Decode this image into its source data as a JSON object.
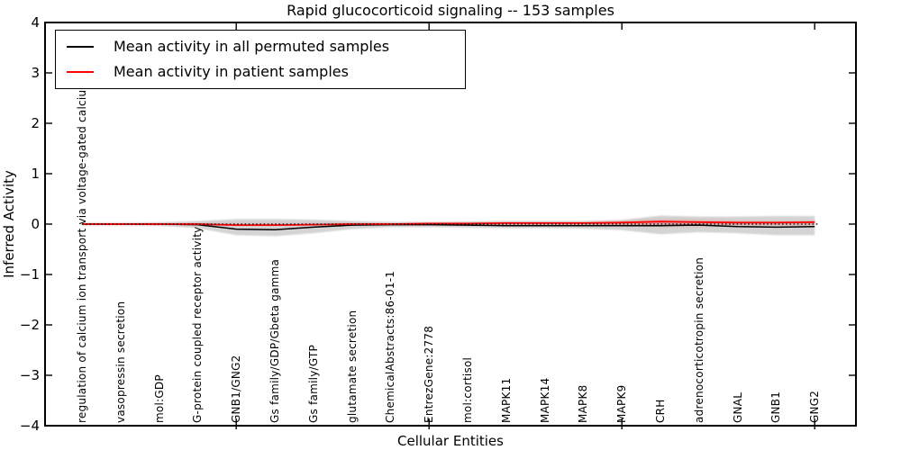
{
  "title": "Rapid glucocorticoid signaling -- 153 samples",
  "axes": {
    "ylabel": "Inferred Activity",
    "xlabel": "Cellular Entities",
    "ytick_labels": [
      "4",
      "3",
      "2",
      "1",
      "0",
      "−1",
      "−2",
      "−3",
      "−4"
    ],
    "ytick_values": [
      4,
      3,
      2,
      1,
      0,
      -1,
      -2,
      -3,
      -4
    ]
  },
  "legend": {
    "items": [
      {
        "label": "Mean activity in all permuted samples",
        "color": "#000000"
      },
      {
        "label": "Mean activity in patient samples",
        "color": "#ff0000"
      }
    ]
  },
  "chart_data": {
    "type": "line",
    "title": "Rapid glucocorticoid signaling -- 153 samples",
    "xlabel": "Cellular Entities",
    "ylabel": "Inferred Activity",
    "ylim": [
      -4,
      4
    ],
    "grid": false,
    "legend_position": "upper left",
    "categories": [
      "regulation of calcium ion transport via voltage-gated calcium channel",
      "vasopressin secretion",
      "mol:GDP",
      "G-protein coupled receptor activity",
      "GNB1/GNG2",
      "Gs family/GDP/Gbeta gamma",
      "Gs family/GTP",
      "glutamate secretion",
      "ChemicalAbstracts:86-01-1",
      "EntrezGene:2778",
      "mol:cortisol",
      "MAPK11",
      "MAPK14",
      "MAPK8",
      "MAPK9",
      "CRH",
      "adrenocorticotropin secretion",
      "GNAL",
      "GNB1",
      "GNG2"
    ],
    "series": [
      {
        "name": "Mean activity in all permuted samples",
        "color": "#000000",
        "values": [
          0,
          0,
          0,
          -0.01,
          -0.1,
          -0.11,
          -0.06,
          -0.02,
          -0.01,
          -0.01,
          -0.02,
          -0.03,
          -0.03,
          -0.03,
          -0.03,
          -0.03,
          -0.02,
          -0.05,
          -0.06,
          -0.05
        ]
      },
      {
        "name": "Mean activity in patient samples",
        "color": "#ff0000",
        "values": [
          0,
          0,
          0,
          0,
          -0.02,
          -0.02,
          -0.01,
          0,
          0,
          0.01,
          0.01,
          0.02,
          0.02,
          0.02,
          0.03,
          0.05,
          0.04,
          0.03,
          0.03,
          0.04
        ]
      }
    ],
    "bands": [
      {
        "name": "permuted samples envelope",
        "color": "#999999",
        "opacity": 0.42,
        "blur": 0.8,
        "upper": [
          0.02,
          0.02,
          0.03,
          0.06,
          0.1,
          0.1,
          0.09,
          0.06,
          0.04,
          0.04,
          0.05,
          0.06,
          0.06,
          0.06,
          0.08,
          0.17,
          0.15,
          0.15,
          0.16,
          0.16
        ],
        "lower": [
          -0.02,
          -0.02,
          -0.03,
          -0.08,
          -0.22,
          -0.24,
          -0.18,
          -0.1,
          -0.06,
          -0.06,
          -0.07,
          -0.08,
          -0.08,
          -0.09,
          -0.12,
          -0.2,
          -0.16,
          -0.18,
          -0.22,
          -0.22
        ]
      },
      {
        "name": "patient samples envelope outer",
        "color": "#ff0000",
        "opacity": 0.1,
        "blur": 1.6,
        "upper": [
          0.01,
          0.01,
          0.01,
          0.01,
          0.01,
          0.01,
          0.01,
          0.01,
          0.01,
          0.01,
          0.02,
          0.04,
          0.04,
          0.04,
          0.06,
          0.1,
          0.09,
          0.06,
          0.05,
          0.06
        ],
        "lower": [
          -0.01,
          -0.01,
          -0.01,
          -0.01,
          -0.01,
          -0.01,
          -0.01,
          -0.01,
          -0.01,
          -0.01,
          -0.02,
          -0.02,
          -0.02,
          -0.02,
          -0.03,
          -0.04,
          -0.04,
          -0.02,
          -0.02,
          -0.02
        ]
      },
      {
        "name": "patient samples envelope inner",
        "color": "#ff0000",
        "opacity": 0.18,
        "blur": 1.6,
        "upper": [
          0.01,
          0.01,
          0.01,
          0.01,
          0.01,
          0.01,
          0.01,
          0.01,
          0.01,
          0.01,
          0.01,
          0.02,
          0.02,
          0.02,
          0.04,
          0.06,
          0.05,
          0.04,
          0.03,
          0.04
        ],
        "lower": [
          -0.01,
          -0.01,
          -0.01,
          -0.01,
          -0.01,
          -0.01,
          -0.01,
          -0.01,
          -0.01,
          -0.01,
          -0.01,
          -0.01,
          -0.01,
          -0.01,
          -0.02,
          -0.03,
          -0.03,
          -0.01,
          -0.01,
          -0.01
        ]
      }
    ],
    "zero_line_style": "dotted",
    "x_major_tick_indices": [
      4,
      9,
      14,
      19
    ]
  }
}
